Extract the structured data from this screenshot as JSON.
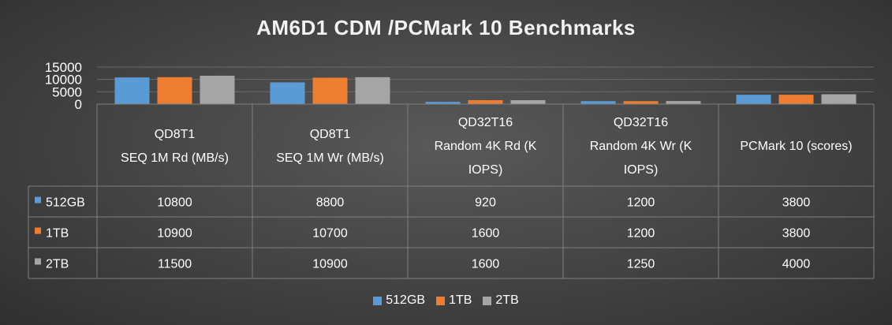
{
  "chart_data": {
    "type": "bar",
    "title": "AM6D1 CDM /PCMark 10 Benchmarks",
    "categories": [
      [
        "QD8T1",
        "SEQ 1M Rd (MB/s)"
      ],
      [
        "QD8T1",
        "SEQ 1M Wr (MB/s)"
      ],
      [
        "QD32T16",
        "Random 4K Rd (K",
        "IOPS)"
      ],
      [
        "QD32T16",
        "Random 4K Wr (K",
        "IOPS)"
      ],
      [
        "PCMark 10 (scores)"
      ]
    ],
    "series": [
      {
        "name": "512GB",
        "color": "#5b9bd5",
        "values": [
          10800,
          8800,
          920,
          1200,
          3800
        ]
      },
      {
        "name": "1TB",
        "color": "#ed7d31",
        "values": [
          10900,
          10700,
          1600,
          1200,
          3800
        ]
      },
      {
        "name": "2TB",
        "color": "#a5a5a5",
        "values": [
          11500,
          10900,
          1600,
          1250,
          4000
        ]
      }
    ],
    "yticks": [
      0,
      5000,
      10000,
      15000
    ],
    "ylim": [
      0,
      15000
    ],
    "grid": true,
    "legend_position": "bottom",
    "data_table": true
  }
}
